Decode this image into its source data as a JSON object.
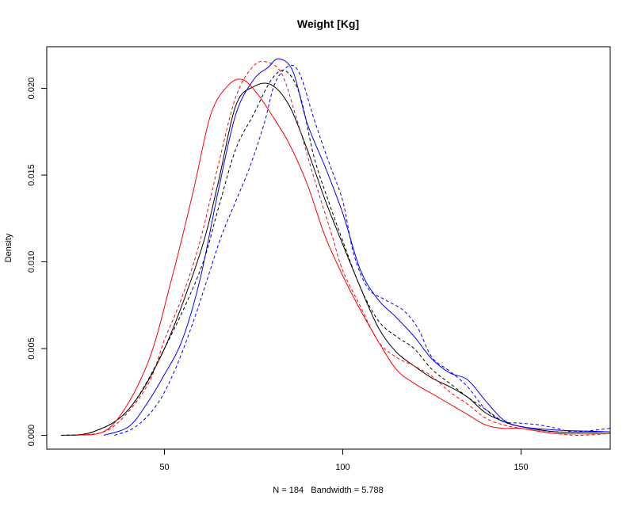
{
  "chart_data": {
    "type": "line",
    "title": "Weight [Kg]",
    "xlabel": "N = 184   Bandwidth = 5.788",
    "ylabel": "Density",
    "xlim": [
      17,
      175
    ],
    "ylim": [
      -0.0008,
      0.0224
    ],
    "x_ticks": [
      50,
      100,
      150
    ],
    "x_tick_labels": [
      "50",
      "100",
      "150"
    ],
    "y_ticks": [
      0.0,
      0.005,
      0.01,
      0.015,
      0.02
    ],
    "y_tick_labels": [
      "0.000",
      "0.005",
      "0.010",
      "0.015",
      "0.020"
    ],
    "grid": false,
    "legend": "none",
    "series": [
      {
        "color": "#000000",
        "dash": "solid",
        "points": [
          [
            21,
            0
          ],
          [
            30,
            0.0002
          ],
          [
            40,
            0.0015
          ],
          [
            50,
            0.005
          ],
          [
            60,
            0.0105
          ],
          [
            65,
            0.0145
          ],
          [
            70,
            0.019
          ],
          [
            75,
            0.0201
          ],
          [
            80,
            0.0202
          ],
          [
            85,
            0.019
          ],
          [
            90,
            0.0165
          ],
          [
            95,
            0.0136
          ],
          [
            100,
            0.011
          ],
          [
            105,
            0.0085
          ],
          [
            110,
            0.0062
          ],
          [
            115,
            0.0048
          ],
          [
            120,
            0.004
          ],
          [
            125,
            0.0033
          ],
          [
            130,
            0.0028
          ],
          [
            135,
            0.0022
          ],
          [
            140,
            0.0013
          ],
          [
            145,
            0.0008
          ],
          [
            150,
            0.0005
          ],
          [
            160,
            0.0002
          ],
          [
            175,
            0.0002
          ]
        ]
      },
      {
        "color": "#000000",
        "dash": "dashed",
        "points": [
          [
            21,
            0
          ],
          [
            30,
            0.0002
          ],
          [
            40,
            0.0015
          ],
          [
            50,
            0.005
          ],
          [
            60,
            0.0095
          ],
          [
            65,
            0.013
          ],
          [
            70,
            0.0165
          ],
          [
            75,
            0.0185
          ],
          [
            80,
            0.0205
          ],
          [
            84,
            0.021
          ],
          [
            88,
            0.0196
          ],
          [
            92,
            0.016
          ],
          [
            96,
            0.0135
          ],
          [
            100,
            0.0112
          ],
          [
            105,
            0.0085
          ],
          [
            110,
            0.0066
          ],
          [
            115,
            0.0057
          ],
          [
            120,
            0.005
          ],
          [
            125,
            0.0038
          ],
          [
            130,
            0.003
          ],
          [
            135,
            0.0022
          ],
          [
            140,
            0.0015
          ],
          [
            145,
            0.0008
          ],
          [
            150,
            0.0005
          ],
          [
            160,
            0.0002
          ],
          [
            175,
            0.0002
          ]
        ]
      },
      {
        "color": "#ff0000",
        "dash": "solid",
        "points": [
          [
            25,
            0
          ],
          [
            35,
            0.0005
          ],
          [
            45,
            0.004
          ],
          [
            52,
            0.009
          ],
          [
            58,
            0.014
          ],
          [
            63,
            0.0185
          ],
          [
            68,
            0.0202
          ],
          [
            72,
            0.0205
          ],
          [
            76,
            0.0197
          ],
          [
            80,
            0.0185
          ],
          [
            85,
            0.0168
          ],
          [
            90,
            0.0145
          ],
          [
            95,
            0.0115
          ],
          [
            100,
            0.0092
          ],
          [
            105,
            0.0072
          ],
          [
            110,
            0.0054
          ],
          [
            115,
            0.0038
          ],
          [
            120,
            0.003
          ],
          [
            125,
            0.0024
          ],
          [
            130,
            0.0018
          ],
          [
            135,
            0.0012
          ],
          [
            140,
            0.0006
          ],
          [
            145,
            0.0004
          ],
          [
            150,
            0.0004
          ],
          [
            160,
            0.0001
          ],
          [
            175,
            0.0001
          ]
        ]
      },
      {
        "color": "#ff0000",
        "dash": "dashed",
        "points": [
          [
            25,
            0
          ],
          [
            35,
            0.0004
          ],
          [
            45,
            0.0028
          ],
          [
            50,
            0.0055
          ],
          [
            55,
            0.008
          ],
          [
            60,
            0.0112
          ],
          [
            65,
            0.0155
          ],
          [
            70,
            0.0195
          ],
          [
            75,
            0.0213
          ],
          [
            79,
            0.0215
          ],
          [
            83,
            0.0208
          ],
          [
            87,
            0.0183
          ],
          [
            92,
            0.0148
          ],
          [
            97,
            0.0115
          ],
          [
            100,
            0.0095
          ],
          [
            105,
            0.0074
          ],
          [
            110,
            0.0054
          ],
          [
            115,
            0.0045
          ],
          [
            120,
            0.004
          ],
          [
            125,
            0.0034
          ],
          [
            130,
            0.0025
          ],
          [
            135,
            0.0018
          ],
          [
            140,
            0.001
          ],
          [
            145,
            0.0006
          ],
          [
            150,
            0.0004
          ],
          [
            160,
            0.0001
          ],
          [
            166,
            0.0
          ],
          [
            175,
            0.0001
          ]
        ]
      },
      {
        "color": "#0000ff",
        "dash": "solid",
        "points": [
          [
            33,
            0
          ],
          [
            40,
            0.0005
          ],
          [
            45,
            0.0018
          ],
          [
            50,
            0.0035
          ],
          [
            55,
            0.0055
          ],
          [
            60,
            0.009
          ],
          [
            65,
            0.014
          ],
          [
            70,
            0.0185
          ],
          [
            75,
            0.0205
          ],
          [
            79,
            0.0212
          ],
          [
            82,
            0.0217
          ],
          [
            86,
            0.021
          ],
          [
            90,
            0.018
          ],
          [
            95,
            0.0155
          ],
          [
            100,
            0.0128
          ],
          [
            105,
            0.0095
          ],
          [
            110,
            0.0078
          ],
          [
            115,
            0.0068
          ],
          [
            120,
            0.0057
          ],
          [
            125,
            0.0044
          ],
          [
            130,
            0.0036
          ],
          [
            135,
            0.0032
          ],
          [
            140,
            0.002
          ],
          [
            145,
            0.0009
          ],
          [
            150,
            0.0005
          ],
          [
            160,
            0.0003
          ],
          [
            175,
            0.0002
          ]
        ]
      },
      {
        "color": "#0000ff",
        "dash": "dashed",
        "points": [
          [
            36,
            0
          ],
          [
            42,
            0.0005
          ],
          [
            48,
            0.0018
          ],
          [
            53,
            0.0038
          ],
          [
            58,
            0.0065
          ],
          [
            62,
            0.009
          ],
          [
            66,
            0.0115
          ],
          [
            70,
            0.0135
          ],
          [
            74,
            0.0155
          ],
          [
            78,
            0.018
          ],
          [
            81,
            0.0203
          ],
          [
            85,
            0.0213
          ],
          [
            88,
            0.0208
          ],
          [
            92,
            0.0182
          ],
          [
            96,
            0.0158
          ],
          [
            100,
            0.0135
          ],
          [
            103,
            0.0105
          ],
          [
            107,
            0.0085
          ],
          [
            112,
            0.0078
          ],
          [
            117,
            0.0072
          ],
          [
            121,
            0.0062
          ],
          [
            125,
            0.0045
          ],
          [
            130,
            0.0037
          ],
          [
            135,
            0.0028
          ],
          [
            140,
            0.0015
          ],
          [
            145,
            0.0008
          ],
          [
            150,
            0.0007
          ],
          [
            155,
            0.0006
          ],
          [
            160,
            0.0004
          ],
          [
            165,
            0.0002
          ],
          [
            175,
            0.0004
          ]
        ]
      }
    ]
  }
}
